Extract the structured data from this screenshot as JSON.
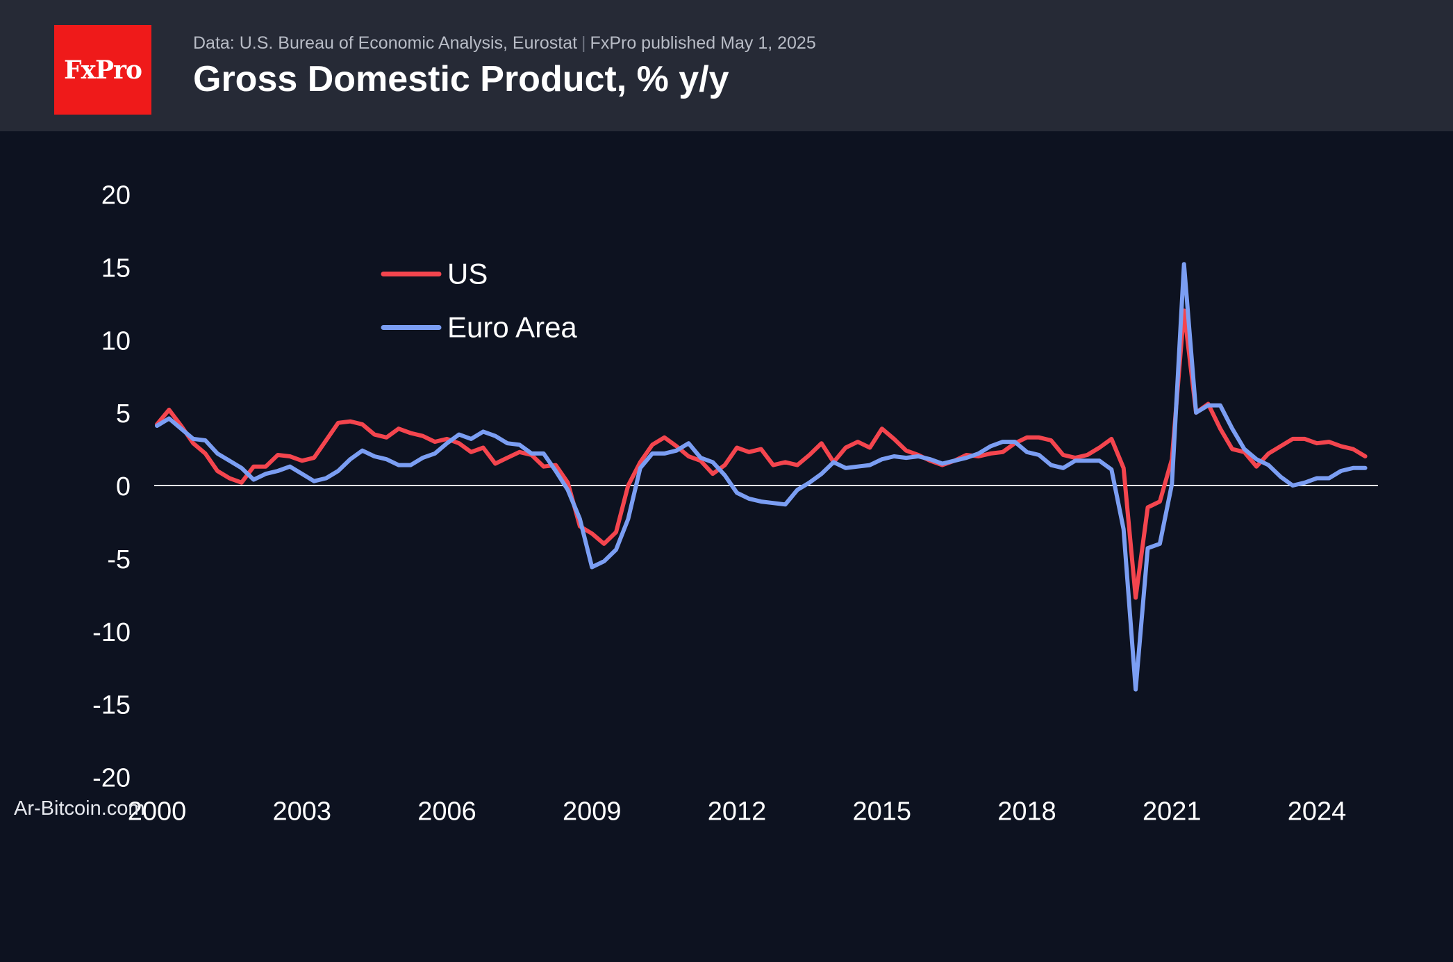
{
  "header": {
    "logo_text": "FxPro",
    "source": "Data: U.S. Bureau of Economic Analysis, Eurostat",
    "published": "FxPro published May 1, 2025",
    "title": "Gross Domestic Product, % y/y"
  },
  "watermark": "Ar-Bitcoin.com",
  "colors": {
    "background": "#0d1220",
    "header": "#262a36",
    "logo": "#ef1a1a",
    "us": "#f4454e",
    "euro": "#7b9ef3",
    "zero_line": "#ffffff"
  },
  "chart_data": {
    "type": "line",
    "title": "Gross Domestic Product, % y/y",
    "xlabel": "",
    "ylabel": "",
    "xlim": [
      2000,
      2025.25
    ],
    "ylim": [
      -20,
      20
    ],
    "yticks": [
      -20,
      -15,
      -10,
      -5,
      0,
      5,
      10,
      15,
      20
    ],
    "xticks": [
      2000,
      2003,
      2006,
      2009,
      2012,
      2015,
      2018,
      2021,
      2024
    ],
    "legend_position": "top-left",
    "series": [
      {
        "name": "US",
        "color": "#f4454e",
        "x": [
          2000,
          2000.25,
          2000.5,
          2000.75,
          2001,
          2001.25,
          2001.5,
          2001.75,
          2002,
          2002.25,
          2002.5,
          2002.75,
          2003,
          2003.25,
          2003.5,
          2003.75,
          2004,
          2004.25,
          2004.5,
          2004.75,
          2005,
          2005.25,
          2005.5,
          2005.75,
          2006,
          2006.25,
          2006.5,
          2006.75,
          2007,
          2007.25,
          2007.5,
          2007.75,
          2008,
          2008.25,
          2008.5,
          2008.75,
          2009,
          2009.25,
          2009.5,
          2009.75,
          2010,
          2010.25,
          2010.5,
          2010.75,
          2011,
          2011.25,
          2011.5,
          2011.75,
          2012,
          2012.25,
          2012.5,
          2012.75,
          2013,
          2013.25,
          2013.5,
          2013.75,
          2014,
          2014.25,
          2014.5,
          2014.75,
          2015,
          2015.25,
          2015.5,
          2015.75,
          2016,
          2016.25,
          2016.5,
          2016.75,
          2017,
          2017.25,
          2017.5,
          2017.75,
          2018,
          2018.25,
          2018.5,
          2018.75,
          2019,
          2019.25,
          2019.5,
          2019.75,
          2020,
          2020.25,
          2020.5,
          2020.75,
          2021,
          2021.25,
          2021.5,
          2021.75,
          2022,
          2022.25,
          2022.5,
          2022.75,
          2023,
          2023.25,
          2023.5,
          2023.75,
          2024,
          2024.25,
          2024.5,
          2024.75,
          2025
        ],
        "values": [
          4.2,
          5.2,
          4.1,
          2.9,
          2.2,
          1.0,
          0.5,
          0.2,
          1.3,
          1.3,
          2.1,
          2.0,
          1.7,
          1.9,
          3.1,
          4.3,
          4.4,
          4.2,
          3.5,
          3.3,
          3.9,
          3.6,
          3.4,
          3.0,
          3.2,
          2.9,
          2.3,
          2.6,
          1.5,
          1.9,
          2.3,
          2.1,
          1.3,
          1.4,
          0.2,
          -2.8,
          -3.3,
          -4.0,
          -3.2,
          0.0,
          1.6,
          2.8,
          3.3,
          2.7,
          2.0,
          1.7,
          0.8,
          1.4,
          2.6,
          2.3,
          2.5,
          1.4,
          1.6,
          1.4,
          2.1,
          2.9,
          1.6,
          2.6,
          3.0,
          2.6,
          3.9,
          3.2,
          2.4,
          2.1,
          1.7,
          1.4,
          1.7,
          2.1,
          2.0,
          2.2,
          2.3,
          2.9,
          3.3,
          3.3,
          3.1,
          2.1,
          1.9,
          2.1,
          2.6,
          3.2,
          1.2,
          -7.7,
          -1.5,
          -1.1,
          1.8,
          12.0,
          5.0,
          5.6,
          3.9,
          2.5,
          2.3,
          1.3,
          2.2,
          2.7,
          3.2,
          3.2,
          2.9,
          3.0,
          2.7,
          2.5,
          2.0
        ]
      },
      {
        "name": "Euro Area",
        "color": "#7b9ef3",
        "x": [
          2000,
          2000.25,
          2000.5,
          2000.75,
          2001,
          2001.25,
          2001.5,
          2001.75,
          2002,
          2002.25,
          2002.5,
          2002.75,
          2003,
          2003.25,
          2003.5,
          2003.75,
          2004,
          2004.25,
          2004.5,
          2004.75,
          2005,
          2005.25,
          2005.5,
          2005.75,
          2006,
          2006.25,
          2006.5,
          2006.75,
          2007,
          2007.25,
          2007.5,
          2007.75,
          2008,
          2008.25,
          2008.5,
          2008.75,
          2009,
          2009.25,
          2009.5,
          2009.75,
          2010,
          2010.25,
          2010.5,
          2010.75,
          2011,
          2011.25,
          2011.5,
          2011.75,
          2012,
          2012.25,
          2012.5,
          2012.75,
          2013,
          2013.25,
          2013.5,
          2013.75,
          2014,
          2014.25,
          2014.5,
          2014.75,
          2015,
          2015.25,
          2015.5,
          2015.75,
          2016,
          2016.25,
          2016.5,
          2016.75,
          2017,
          2017.25,
          2017.5,
          2017.75,
          2018,
          2018.25,
          2018.5,
          2018.75,
          2019,
          2019.25,
          2019.5,
          2019.75,
          2020,
          2020.25,
          2020.5,
          2020.75,
          2021,
          2021.25,
          2021.5,
          2021.75,
          2022,
          2022.25,
          2022.5,
          2022.75,
          2023,
          2023.25,
          2023.5,
          2023.75,
          2024,
          2024.25,
          2024.5,
          2024.75,
          2025
        ],
        "values": [
          4.1,
          4.6,
          3.9,
          3.2,
          3.1,
          2.2,
          1.7,
          1.2,
          0.4,
          0.8,
          1.0,
          1.3,
          0.8,
          0.3,
          0.5,
          1.0,
          1.8,
          2.4,
          2.0,
          1.8,
          1.4,
          1.4,
          1.9,
          2.2,
          2.9,
          3.5,
          3.2,
          3.7,
          3.4,
          2.9,
          2.8,
          2.2,
          2.2,
          1.0,
          -0.3,
          -2.3,
          -5.6,
          -5.2,
          -4.4,
          -2.3,
          1.2,
          2.2,
          2.2,
          2.4,
          2.9,
          1.9,
          1.6,
          0.7,
          -0.5,
          -0.9,
          -1.1,
          -1.2,
          -1.3,
          -0.3,
          0.2,
          0.8,
          1.6,
          1.2,
          1.3,
          1.4,
          1.8,
          2.0,
          1.9,
          2.0,
          1.8,
          1.5,
          1.7,
          1.9,
          2.2,
          2.7,
          3.0,
          3.0,
          2.3,
          2.1,
          1.4,
          1.2,
          1.7,
          1.7,
          1.7,
          1.1,
          -3.0,
          -14.0,
          -4.3,
          -4.0,
          0.1,
          15.2,
          5.0,
          5.5,
          5.5,
          3.9,
          2.5,
          1.8,
          1.4,
          0.6,
          0.0,
          0.2,
          0.5,
          0.5,
          1.0,
          1.2,
          1.2
        ]
      }
    ]
  }
}
